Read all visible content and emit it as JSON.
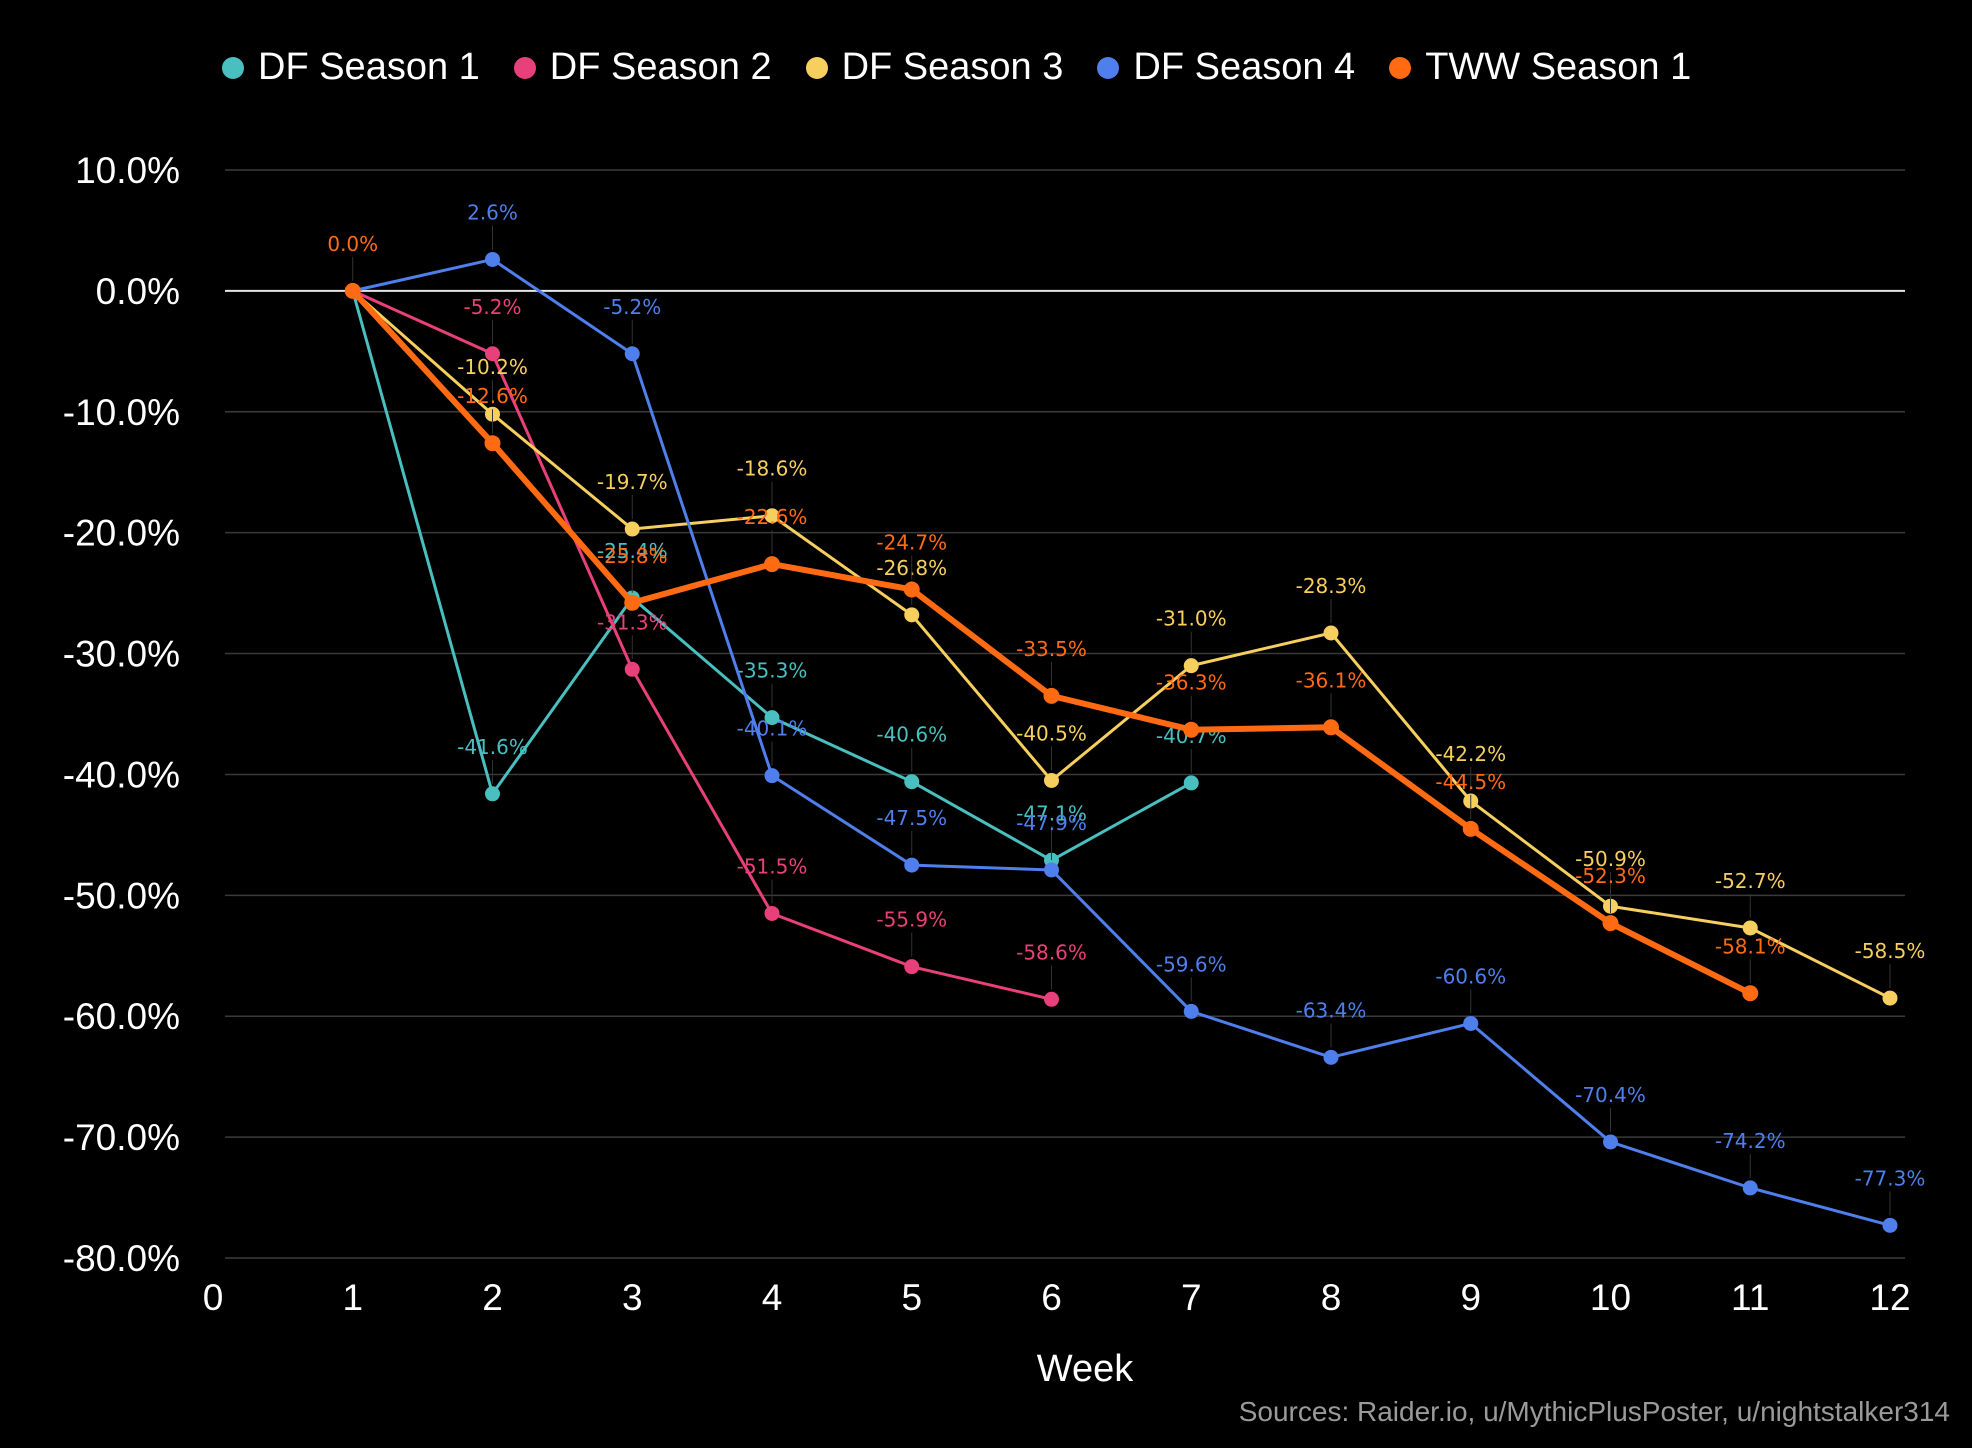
{
  "chart_data": {
    "type": "line",
    "xlabel": "Week",
    "ylabel": "",
    "xlim": [
      0,
      12
    ],
    "ylim": [
      -80,
      10
    ],
    "x_ticks": [
      "0",
      "1",
      "2",
      "3",
      "4",
      "5",
      "6",
      "7",
      "8",
      "9",
      "10",
      "11",
      "12"
    ],
    "y_ticks": [
      "10.0%",
      "0.0%",
      "-10.0%",
      "-20.0%",
      "-30.0%",
      "-40.0%",
      "-50.0%",
      "-60.0%",
      "-70.0%",
      "-80.0%"
    ],
    "grid": true,
    "legend_position": "top",
    "series": [
      {
        "name": "DF Season 1",
        "color": "#4ABFBF",
        "x": [
          1,
          2,
          3,
          4,
          5,
          6,
          7
        ],
        "values": [
          0.0,
          -41.6,
          -25.4,
          -35.3,
          -40.6,
          -47.1,
          -40.7
        ],
        "labels": [
          "",
          "-41.6%",
          "-25.4%",
          "-35.3%",
          "-40.6%",
          "-47.1%",
          "-40.7%"
        ]
      },
      {
        "name": "DF Season 2",
        "color": "#E8407A",
        "x": [
          1,
          2,
          3,
          4,
          5,
          6
        ],
        "values": [
          0.0,
          -5.2,
          -31.3,
          -51.5,
          -55.9,
          -58.6
        ],
        "labels": [
          "",
          "-5.2%",
          "-31.3%",
          "-51.5%",
          "-55.9%",
          "-58.6%"
        ]
      },
      {
        "name": "DF Season 3",
        "color": "#F7CF5F",
        "x": [
          1,
          2,
          3,
          4,
          5,
          6,
          7,
          8,
          9,
          10,
          11,
          12
        ],
        "values": [
          0.0,
          -10.2,
          -19.7,
          -18.6,
          -26.8,
          -40.5,
          -31.0,
          -28.3,
          -42.2,
          -50.9,
          -52.7,
          -58.5
        ],
        "labels": [
          "",
          "-10.2%",
          "-19.7%",
          "-18.6%",
          "-26.8%",
          "-40.5%",
          "-31.0%",
          "-28.3%",
          "-42.2%",
          "-50.9%",
          "-52.7%",
          "-58.5%"
        ]
      },
      {
        "name": "DF Season 4",
        "color": "#4F7FEC",
        "x": [
          1,
          2,
          3,
          4,
          5,
          6,
          7,
          8,
          9,
          10,
          11,
          12
        ],
        "values": [
          0.0,
          2.6,
          -5.2,
          -40.1,
          -47.5,
          -47.9,
          -59.6,
          -63.4,
          -60.6,
          -70.4,
          -74.2,
          -77.3
        ],
        "labels": [
          "",
          "2.6%",
          "-5.2%",
          "-40.1%",
          "-47.5%",
          "-47.9%",
          "-59.6%",
          "-63.4%",
          "-60.6%",
          "-70.4%",
          "-74.2%",
          "-77.3%"
        ]
      },
      {
        "name": "TWW Season 1",
        "color": "#FF6A13",
        "x": [
          1,
          2,
          3,
          4,
          5,
          6,
          7,
          8,
          9,
          10,
          11
        ],
        "values": [
          0.0,
          -12.6,
          -25.8,
          -22.6,
          -24.7,
          -33.5,
          -36.3,
          -36.1,
          -44.5,
          -52.3,
          -58.1
        ],
        "labels": [
          "0.0%",
          "-12.6%",
          "-25.8%",
          "-22.6%",
          "-24.7%",
          "-33.5%",
          "-36.3%",
          "-36.1%",
          "-44.5%",
          "-52.3%",
          "-58.1%"
        ]
      }
    ]
  },
  "sources": "Sources: Raider.io, u/MythicPlusPoster, u/nightstalker314"
}
